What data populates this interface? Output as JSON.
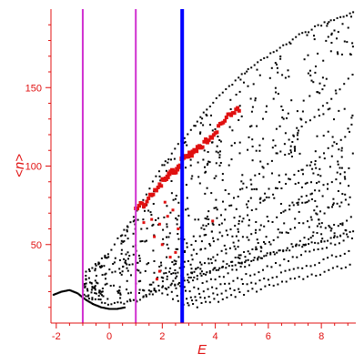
{
  "chart_data": {
    "type": "scatter",
    "xlabel": "E",
    "ylabel": "<n>",
    "xlim": [
      -2.2,
      9.3
    ],
    "ylim": [
      0,
      200
    ],
    "x_ticks": [
      -2,
      0,
      2,
      4,
      6,
      8
    ],
    "y_ticks": [
      50,
      100,
      150
    ],
    "grid": false,
    "colors": {
      "axis": "#e01010",
      "black_points": "#000000",
      "red_points": "#e01010",
      "magenta_lines": "#d030d0",
      "blue_line": "#0000ff"
    },
    "vertical_lines": [
      {
        "x": -1.0,
        "color": "#d030d0"
      },
      {
        "x": 1.0,
        "color": "#d030d0"
      },
      {
        "x": 2.75,
        "color": "#0000ff"
      }
    ],
    "black_bands": [
      {
        "x_start": 1.5,
        "y_start": 22,
        "x_end": 9.2,
        "slope": 17.7
      },
      {
        "x_start": 1.7,
        "y_start": 22,
        "x_end": 9.2,
        "slope": 13.5
      },
      {
        "x_start": 2.0,
        "y_start": 20,
        "x_end": 9.2,
        "slope": 11.0
      },
      {
        "x_start": 2.2,
        "y_start": 18,
        "x_end": 9.2,
        "slope": 9.0
      },
      {
        "x_start": 2.4,
        "y_start": 16,
        "x_end": 9.2,
        "slope": 7.5
      },
      {
        "x_start": 2.6,
        "y_start": 14,
        "x_end": 9.2,
        "slope": 6.3
      },
      {
        "x_start": 2.8,
        "y_start": 12,
        "x_end": 9.2,
        "slope": 5.3
      },
      {
        "x_start": 3.0,
        "y_start": 10,
        "x_end": 9.2,
        "slope": 4.4
      }
    ],
    "black_boundary_lower": [
      [
        -1.0,
        18
      ],
      [
        0.0,
        12
      ],
      [
        1.0,
        14
      ],
      [
        2.0,
        22
      ],
      [
        3.0,
        28
      ],
      [
        4.0,
        34
      ],
      [
        5.0,
        38
      ],
      [
        6.0,
        44
      ],
      [
        7.0,
        48
      ],
      [
        8.0,
        52
      ],
      [
        9.2,
        58
      ]
    ],
    "black_boundary_upper": [
      [
        -1.0,
        30
      ],
      [
        0.0,
        45
      ],
      [
        1.0,
        70
      ],
      [
        2.0,
        100
      ],
      [
        3.0,
        122
      ],
      [
        4.0,
        142
      ],
      [
        5.0,
        158
      ],
      [
        6.0,
        170
      ],
      [
        7.0,
        182
      ],
      [
        8.0,
        190
      ],
      [
        9.2,
        198
      ]
    ],
    "black_left_tail": [
      [
        -2.1,
        18
      ],
      [
        -1.8,
        20
      ],
      [
        -1.5,
        21
      ],
      [
        -1.2,
        19
      ],
      [
        -0.9,
        15
      ],
      [
        -0.6,
        12
      ],
      [
        -0.3,
        10
      ],
      [
        0.0,
        9
      ],
      [
        0.3,
        9
      ],
      [
        0.6,
        10
      ]
    ],
    "red_main": [
      [
        1.0,
        73
      ],
      [
        1.3,
        76
      ],
      [
        1.6,
        82
      ],
      [
        1.9,
        88
      ],
      [
        2.2,
        93
      ],
      [
        2.5,
        98
      ],
      [
        2.8,
        104
      ],
      [
        3.1,
        108
      ],
      [
        3.4,
        112
      ],
      [
        3.7,
        116
      ],
      [
        4.0,
        122
      ],
      [
        4.3,
        128
      ],
      [
        4.6,
        133
      ],
      [
        4.9,
        137
      ]
    ],
    "red_scatter": [
      [
        1.3,
        64
      ],
      [
        1.6,
        66
      ],
      [
        1.9,
        63
      ],
      [
        2.2,
        68
      ],
      [
        2.4,
        72
      ],
      [
        2.1,
        77
      ],
      [
        1.7,
        55
      ],
      [
        2.0,
        50
      ],
      [
        2.3,
        42
      ],
      [
        1.9,
        33
      ],
      [
        1.8,
        28
      ],
      [
        3.9,
        65
      ],
      [
        2.6,
        60
      ],
      [
        2.5,
        45
      ]
    ]
  }
}
